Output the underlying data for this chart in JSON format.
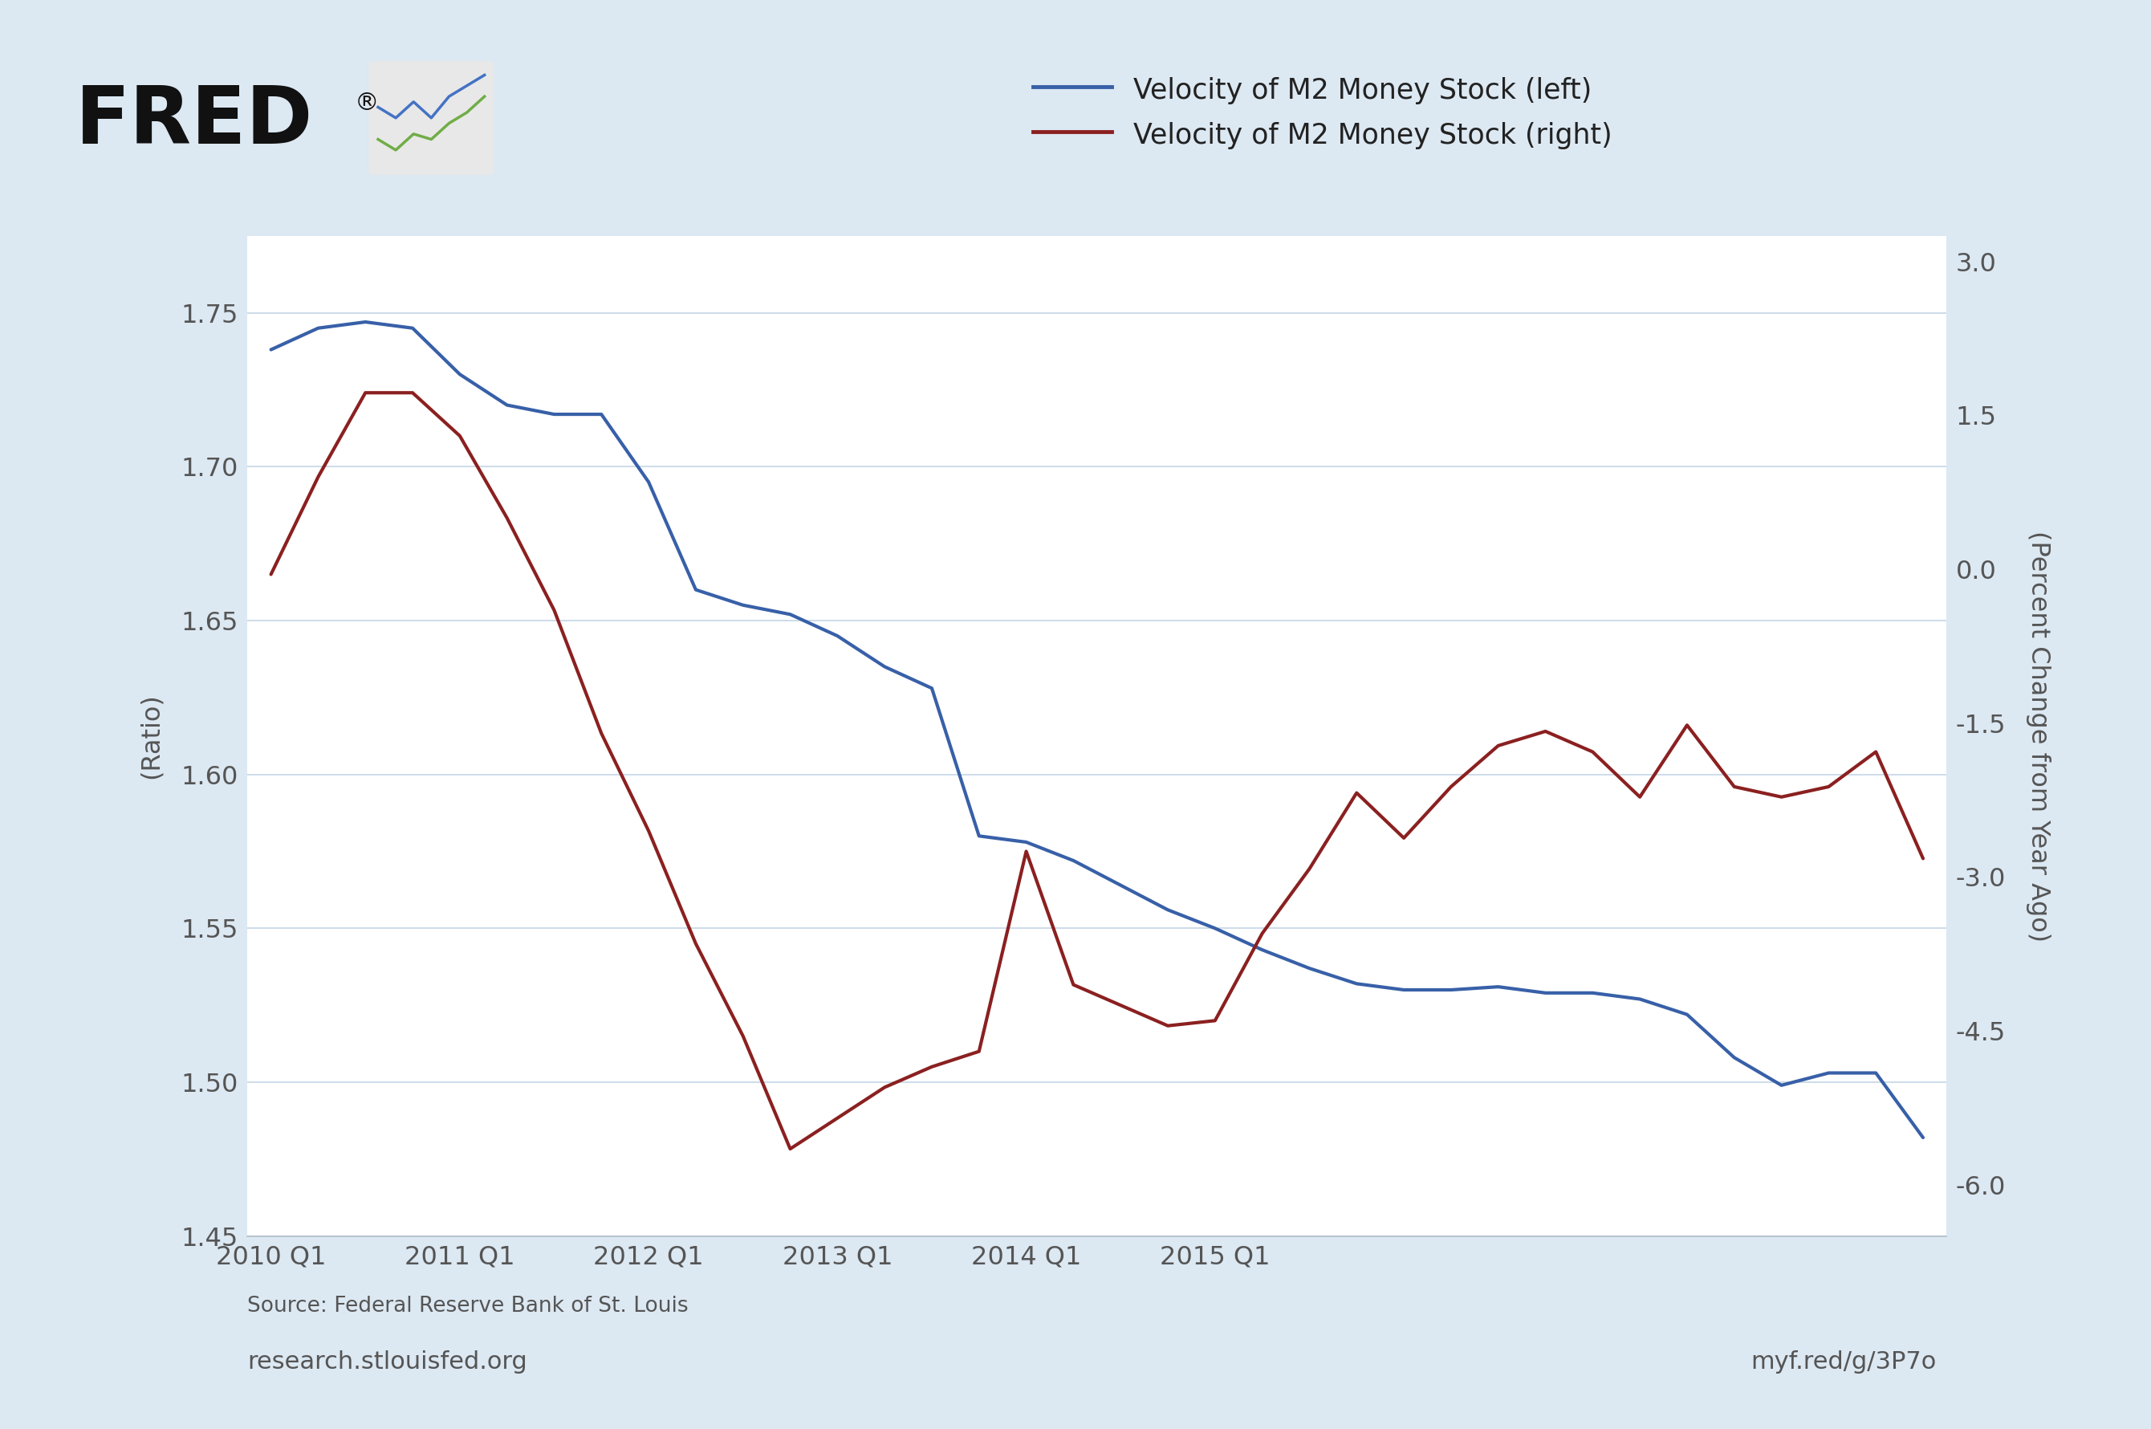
{
  "legend_blue": "Velocity of M2 Money Stock (left)",
  "legend_red": "Velocity of M2 Money Stock (right)",
  "ylabel_left": "(Ratio)",
  "ylabel_right": "(Percent Change from Year Ago)",
  "source_text": "Source: Federal Reserve Bank of St. Louis",
  "url_text": "research.stlouisfed.org",
  "url_right": "myf.red/g/3P7o",
  "background_color": "#dce8f2",
  "plot_bg_color": "#ffffff",
  "blue_color": "#3860a8",
  "red_color": "#8b2020",
  "x_tick_labels": [
    "2010 Q1",
    "2011 Q1",
    "2012 Q1",
    "2013 Q1",
    "2014 Q1",
    "2015 Q1"
  ],
  "x_tick_positions": [
    0,
    4,
    8,
    12,
    16,
    20
  ],
  "blue_data": [
    1.738,
    1.745,
    1.747,
    1.745,
    1.73,
    1.72,
    1.717,
    1.717,
    1.695,
    1.66,
    1.655,
    1.652,
    1.645,
    1.635,
    1.628,
    1.58,
    1.578,
    1.572,
    1.564,
    1.556,
    1.55,
    1.543,
    1.537,
    1.532,
    1.53,
    1.53,
    1.531,
    1.529,
    1.529,
    1.527,
    1.522,
    1.508,
    1.499,
    1.503,
    1.503,
    1.482
  ],
  "red_data": [
    -0.05,
    0.9,
    1.72,
    1.72,
    1.3,
    0.5,
    -0.4,
    -1.6,
    -2.55,
    -3.65,
    -4.55,
    -5.65,
    -5.35,
    -5.05,
    -4.85,
    -4.7,
    -2.75,
    -4.05,
    -4.25,
    -4.45,
    -4.4,
    -3.55,
    -2.92,
    -2.18,
    -2.62,
    -2.12,
    -1.72,
    -1.58,
    -1.78,
    -2.22,
    -1.52,
    -2.12,
    -2.22,
    -2.12,
    -1.78,
    -2.82
  ],
  "ylim_left": [
    1.45,
    1.775
  ],
  "ylim_right": [
    -6.5,
    3.25
  ],
  "yticks_left": [
    1.45,
    1.5,
    1.55,
    1.6,
    1.65,
    1.7,
    1.75
  ],
  "yticks_right": [
    -6.0,
    -4.5,
    -3.0,
    -1.5,
    0.0,
    1.5,
    3.0
  ],
  "grid_color": "#c5d5e5",
  "tick_color": "#555555",
  "spine_color": "#b0bec8"
}
